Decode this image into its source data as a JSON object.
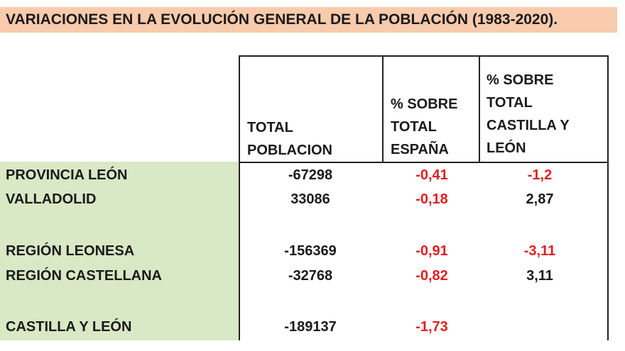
{
  "title": "VARIACIONES EN LA EVOLUCIÓN GENERAL DE LA POBLACIÓN (1983-2020).",
  "headers": {
    "total": "TOTAL\nPOBLACION",
    "espana": "% SOBRE\nTOTAL\nESPAÑA",
    "cyl": "% SOBRE\nTOTAL\nCASTILLA Y\nLEÓN"
  },
  "rows": [
    {
      "label": "PROVINCIA LEÓN",
      "total": "-67298",
      "espana": "-0,41",
      "cyl": "-1,2"
    },
    {
      "label": "VALLADOLID",
      "total": "33086",
      "espana": "-0,18",
      "cyl": "2,87"
    },
    {
      "label": "REGIÓN LEONESA",
      "total": "-156369",
      "espana": "-0,91",
      "cyl": "-3,11"
    },
    {
      "label": "REGIÓN CASTELLANA",
      "total": "-32768",
      "espana": "-0,82",
      "cyl": "3,11"
    },
    {
      "label": "CASTILLA Y LEÓN",
      "total": "-189137",
      "espana": "-1,73",
      "cyl": ""
    }
  ],
  "colors": {
    "negative": "#e02020",
    "positive": "#1a1a1a",
    "title_bg": "#f8cbad",
    "label_bg": "#d9e8c5"
  }
}
